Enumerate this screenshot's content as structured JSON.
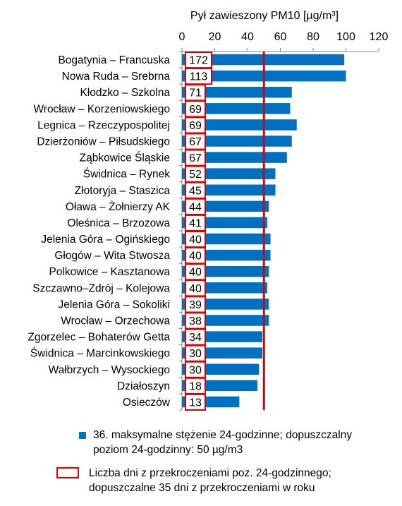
{
  "chart_data": {
    "type": "bar",
    "orientation": "horizontal",
    "title": "Pył zawieszony PM10 [µg/m³]",
    "xlim": [
      0,
      120
    ],
    "xticks": [
      "0",
      "20",
      "40",
      "60",
      "80",
      "100",
      "120"
    ],
    "limit_value": 50,
    "categories": [
      "Bogatynia – Francuska",
      "Nowa Ruda – Srebrna",
      "Kłodzko – Szkolna",
      "Wrocław – Korzeniowskiego",
      "Legnica – Rzeczypospolitej",
      "Dzierżoniów – Piłsudskiego",
      "Ząbkowice Śląskie",
      "Świdnica – Rynek",
      "Złotoryja – Staszica",
      "Oława – Żołnierzy AK",
      "Oleśnica – Brzozowa",
      "Jelenia Góra – Ogińskiego",
      "Głogów – Wita Stwosza",
      "Polkowice – Kasztanowa",
      "Szczawno–Zdrój – Kolejowa",
      "Jelenia Góra – Sokoliki",
      "Wrocław – Orzechowa",
      "Zgorzelec – Bohaterów Getta",
      "Świdnica – Marcinkowskiego",
      "Wałbrzych – Wysockiego",
      "Działoszyn",
      "Osieczów"
    ],
    "series": [
      {
        "name": "36. maksymalne stężenie 24-godzinne; dopuszczalny poziom 24-godzinny: 50 µg/m3",
        "values": [
          99,
          100,
          67,
          66,
          70,
          67,
          64,
          57,
          57,
          53,
          52,
          54,
          54,
          53,
          52,
          53,
          53,
          49,
          49,
          47,
          46,
          35
        ]
      }
    ],
    "exceedance_days": [
      "172",
      "113",
      "71",
      "69",
      "69",
      "67",
      "67",
      "52",
      "45",
      "44",
      "41",
      "40",
      "40",
      "40",
      "40",
      "39",
      "38",
      "34",
      "30",
      "30",
      "18",
      "13"
    ],
    "legend": [
      {
        "label": "36. maksymalne stężenie 24-godzinne; dopuszczalny poziom 24-godzinny: 50 µg/m3",
        "lines": [
          "36. maksymalne stężenie 24-godzinne; dopuszczalny",
          "poziom 24-godzinny: 50 µg/m3"
        ]
      },
      {
        "label": "Liczba dni z przekroczeniami poz. 24-godzinnego; dopuszczalne 35 dni z przekroczeniami w roku",
        "lines": [
          "Liczba dni z przekroczeniami poz. 24-godzinnego;",
          "dopuszczalne 35 dni z przekroczeniami w roku"
        ]
      }
    ],
    "colors": {
      "bar": "#0070C0",
      "limit_line": "#E00000",
      "box": "#E00000",
      "axis": "#808080"
    }
  }
}
